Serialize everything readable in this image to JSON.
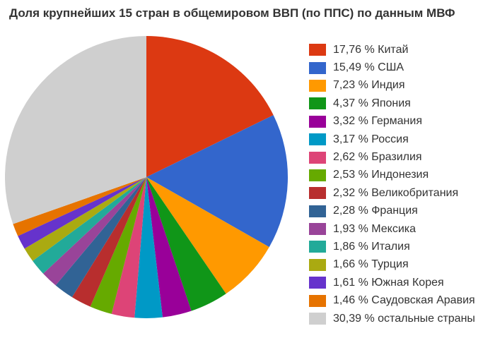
{
  "page": {
    "background_color": "#ffffff",
    "text_color": "#333333"
  },
  "chart_data": {
    "type": "pie",
    "title": "Доля крупнейших 15 стран в общемировом ВВП (по ППС) по данным МВФ",
    "legend_position": "right",
    "start_angle_deg": 0,
    "direction": "clockwise",
    "units": "%",
    "total": 100.0,
    "slices": [
      {
        "label": "Китай",
        "value": 17.76,
        "percent_display": "17,76 %",
        "color": "#DC3912"
      },
      {
        "label": "США",
        "value": 15.49,
        "percent_display": "15,49 %",
        "color": "#3366CC"
      },
      {
        "label": "Индия",
        "value": 7.23,
        "percent_display": "7,23 %",
        "color": "#FF9900"
      },
      {
        "label": "Япония",
        "value": 4.37,
        "percent_display": "4,37 %",
        "color": "#109618"
      },
      {
        "label": "Германия",
        "value": 3.32,
        "percent_display": "3,32 %",
        "color": "#990099"
      },
      {
        "label": "Россия",
        "value": 3.17,
        "percent_display": "3,17 %",
        "color": "#0099C6"
      },
      {
        "label": "Бразилия",
        "value": 2.62,
        "percent_display": "2,62 %",
        "color": "#DD4477"
      },
      {
        "label": "Индонезия",
        "value": 2.53,
        "percent_display": "2,53 %",
        "color": "#66AA00"
      },
      {
        "label": "Великобритания",
        "value": 2.32,
        "percent_display": "2,32 %",
        "color": "#B82E2E"
      },
      {
        "label": "Франция",
        "value": 2.28,
        "percent_display": "2,28 %",
        "color": "#316395"
      },
      {
        "label": "Мексика",
        "value": 1.93,
        "percent_display": "1,93 %",
        "color": "#994499"
      },
      {
        "label": "Италия",
        "value": 1.86,
        "percent_display": "1,86 %",
        "color": "#22AA99"
      },
      {
        "label": "Турция",
        "value": 1.66,
        "percent_display": "1,66 %",
        "color": "#AAAA11"
      },
      {
        "label": "Южная Корея",
        "value": 1.61,
        "percent_display": "1,61 %",
        "color": "#6633CC"
      },
      {
        "label": "Саудовская Аравия",
        "value": 1.46,
        "percent_display": "1,46 %",
        "color": "#E67300"
      },
      {
        "label": "остальные страны",
        "value": 30.39,
        "percent_display": "30,39 %",
        "color": "#CFCFCF"
      }
    ]
  }
}
